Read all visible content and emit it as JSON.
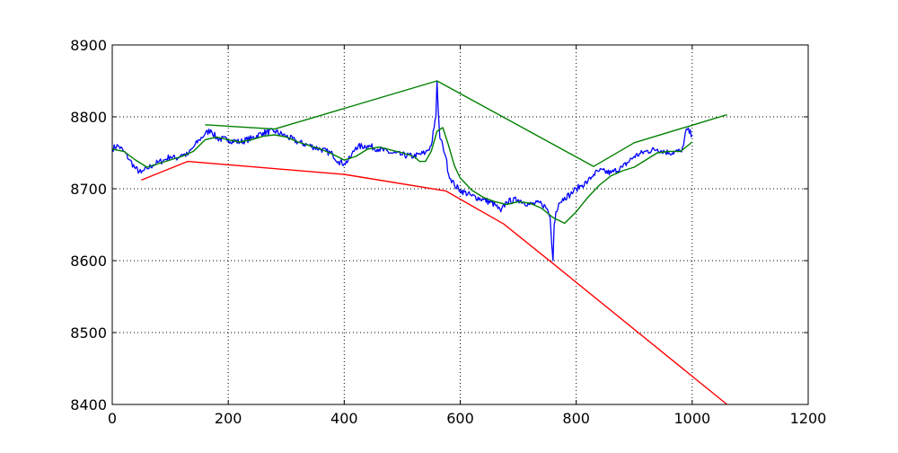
{
  "chart_data": {
    "type": "line",
    "title": "",
    "xlabel": "",
    "ylabel": "",
    "xlim": [
      0,
      1200
    ],
    "ylim": [
      8400,
      8900
    ],
    "xticks": [
      0,
      200,
      400,
      600,
      800,
      1000,
      1200
    ],
    "yticks": [
      8400,
      8500,
      8600,
      8700,
      8800,
      8900
    ],
    "xtick_labels": [
      "0",
      "200",
      "400",
      "600",
      "800",
      "1000",
      "1200"
    ],
    "ytick_labels": [
      "8400",
      "8500",
      "8600",
      "8700",
      "8800",
      "8900"
    ],
    "grid": true,
    "legend": "none",
    "series": [
      {
        "color": "#0000ff",
        "style": "noisy",
        "x": [
          0,
          10,
          20,
          30,
          40,
          50,
          60,
          70,
          80,
          90,
          100,
          110,
          120,
          130,
          140,
          150,
          160,
          170,
          180,
          200,
          220,
          240,
          260,
          280,
          300,
          320,
          340,
          360,
          380,
          390,
          400,
          410,
          420,
          440,
          460,
          480,
          500,
          520,
          540,
          550,
          555,
          558,
          560,
          562,
          565,
          570,
          575,
          580,
          590,
          600,
          620,
          640,
          660,
          670,
          680,
          700,
          720,
          740,
          750,
          755,
          758,
          760,
          762,
          765,
          770,
          780,
          790,
          800,
          810,
          820,
          830,
          840,
          860,
          880,
          900,
          920,
          940,
          960,
          980,
          985,
          990,
          1000
        ],
        "values": [
          8756,
          8760,
          8752,
          8740,
          8728,
          8722,
          8728,
          8733,
          8737,
          8740,
          8745,
          8742,
          8748,
          8747,
          8758,
          8768,
          8776,
          8782,
          8770,
          8768,
          8765,
          8770,
          8778,
          8780,
          8773,
          8765,
          8760,
          8755,
          8748,
          8738,
          8735,
          8742,
          8758,
          8760,
          8755,
          8750,
          8747,
          8745,
          8750,
          8760,
          8785,
          8800,
          8850,
          8810,
          8770,
          8760,
          8745,
          8720,
          8705,
          8698,
          8690,
          8685,
          8678,
          8668,
          8682,
          8685,
          8678,
          8680,
          8672,
          8660,
          8620,
          8600,
          8650,
          8668,
          8680,
          8688,
          8692,
          8700,
          8705,
          8710,
          8720,
          8725,
          8722,
          8730,
          8745,
          8752,
          8755,
          8750,
          8752,
          8760,
          8783,
          8775
        ]
      },
      {
        "color": "#008000",
        "style": "smooth",
        "x": [
          0,
          20,
          40,
          60,
          80,
          100,
          120,
          140,
          160,
          180,
          200,
          220,
          240,
          260,
          280,
          300,
          320,
          340,
          360,
          380,
          400,
          420,
          440,
          460,
          480,
          500,
          520,
          530,
          540,
          550,
          560,
          570,
          580,
          590,
          600,
          620,
          640,
          660,
          680,
          700,
          720,
          740,
          760,
          780,
          800,
          820,
          840,
          860,
          880,
          900,
          920,
          940,
          960,
          980,
          1000
        ],
        "values": [
          8755,
          8752,
          8740,
          8730,
          8735,
          8740,
          8745,
          8752,
          8768,
          8772,
          8768,
          8765,
          8768,
          8773,
          8775,
          8772,
          8765,
          8760,
          8755,
          8748,
          8740,
          8745,
          8755,
          8758,
          8754,
          8750,
          8745,
          8738,
          8738,
          8752,
          8780,
          8785,
          8760,
          8732,
          8715,
          8698,
          8688,
          8682,
          8678,
          8682,
          8680,
          8673,
          8660,
          8652,
          8668,
          8688,
          8705,
          8718,
          8725,
          8730,
          8740,
          8750,
          8752,
          8752,
          8765
        ]
      },
      {
        "color": "#008000",
        "style": "envelope",
        "x": [
          160,
          280,
          560,
          830,
          900,
          1060
        ],
        "values": [
          8789,
          8783,
          8850,
          8731,
          8764,
          8803
        ]
      },
      {
        "color": "#ff0000",
        "style": "envelope",
        "x": [
          50,
          130,
          400,
          575,
          675,
          760,
          1060
        ],
        "values": [
          8712,
          8738,
          8720,
          8697,
          8651,
          8596,
          8400
        ]
      }
    ]
  }
}
